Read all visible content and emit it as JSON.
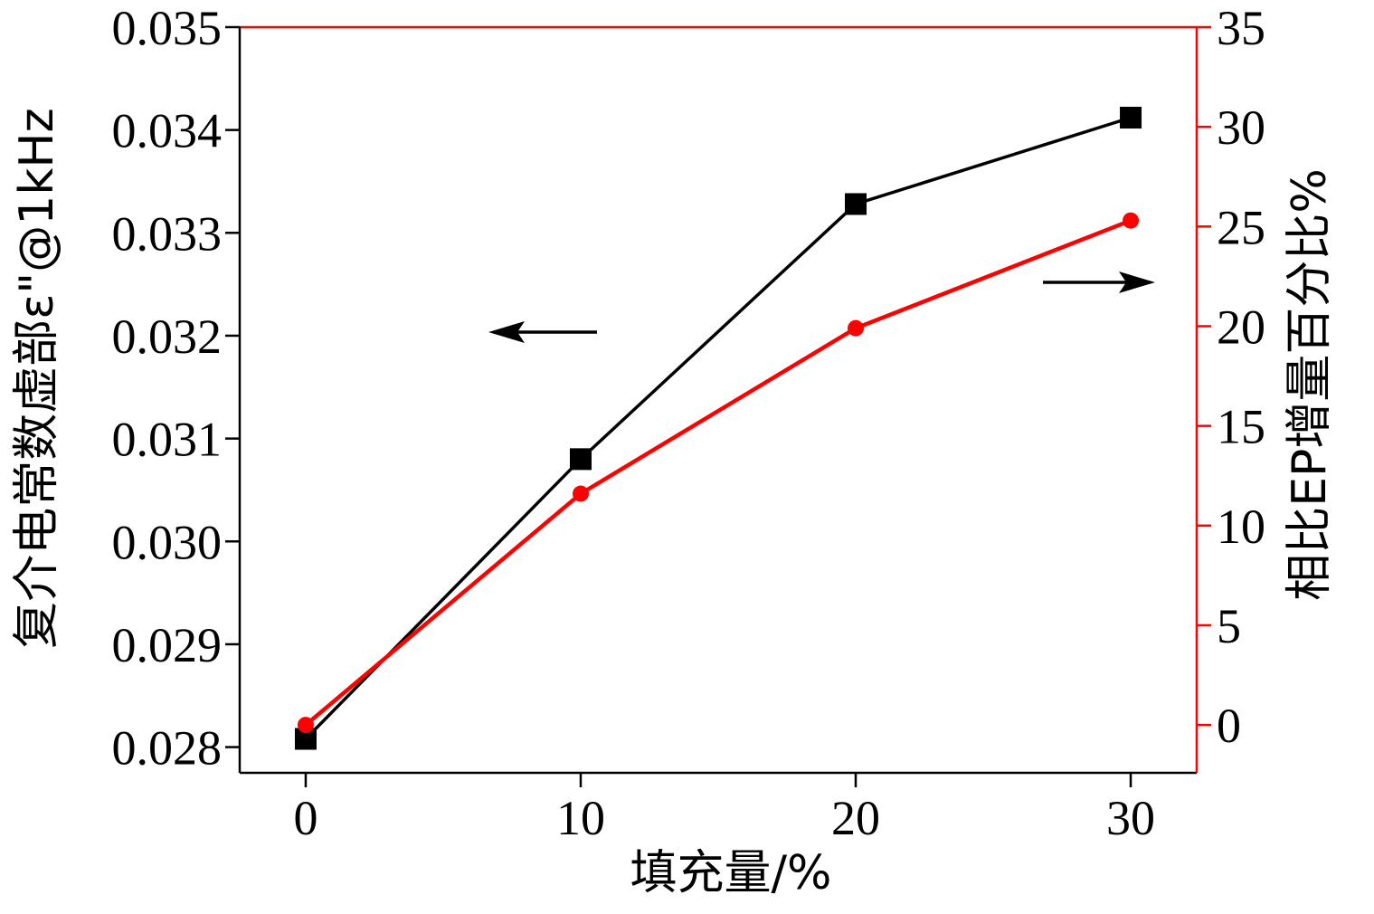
{
  "chart_data": {
    "type": "line",
    "title": "",
    "xlabel": "填充量/%",
    "ylabel_left": "复介电常数虚部ε\"@1kHz",
    "ylabel_right": "相比EP增量百分比%",
    "x": [
      0,
      10,
      20,
      30
    ],
    "xlim": [
      -2.4,
      32.4
    ],
    "x_ticks": [
      "0",
      "10",
      "20",
      "30"
    ],
    "y_left_lim": [
      0.02775,
      0.035
    ],
    "y_left_ticks": [
      "0.028",
      "0.029",
      "0.030",
      "0.031",
      "0.032",
      "0.033",
      "0.034",
      "0.035"
    ],
    "y_right_lim": [
      -2.4,
      35
    ],
    "y_right_ticks": [
      "0",
      "5",
      "10",
      "15",
      "20",
      "25",
      "30",
      "35"
    ],
    "series": [
      {
        "axis": "left",
        "marker": "square",
        "color": "#000000",
        "values": [
          0.02808,
          0.0308,
          0.03328,
          0.03412
        ]
      },
      {
        "axis": "right",
        "marker": "circle",
        "color": "#ff0000",
        "values": [
          0,
          11.6,
          19.9,
          25.3
        ]
      }
    ],
    "annotations": [
      {
        "type": "arrow",
        "direction": "left",
        "meaning": "left-axis"
      },
      {
        "type": "arrow",
        "direction": "right",
        "meaning": "right-axis"
      }
    ],
    "grid": false,
    "colors": {
      "left_axis": "#000000",
      "right_axis": "#ff0000"
    }
  }
}
